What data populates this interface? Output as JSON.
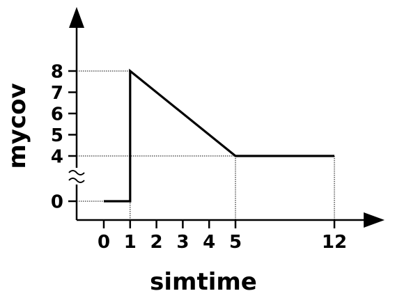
{
  "chart_data": {
    "type": "line",
    "xlabel": "simtime",
    "ylabel": "mycov",
    "x_ticks": [
      "0",
      "1",
      "2",
      "3",
      "4",
      "5",
      "12"
    ],
    "y_ticks": [
      "0",
      "4",
      "5",
      "6",
      "7",
      "8"
    ],
    "y_axis_break": "between 0 and 4",
    "x_axis_break": "between 5 and 12",
    "series": [
      {
        "points": [
          {
            "x": 0,
            "y": 0
          },
          {
            "x": 1,
            "y": 0
          },
          {
            "x": 1,
            "y": 8
          },
          {
            "x": 5,
            "y": 4
          },
          {
            "x": 12,
            "y": 4
          }
        ]
      }
    ],
    "reference_lines": [
      {
        "from": {
          "x": 0,
          "y": 0
        },
        "to": {
          "x": 1,
          "y": 0
        }
      },
      {
        "from": {
          "x": 0,
          "y": 8
        },
        "to": {
          "x": 1,
          "y": 8
        }
      },
      {
        "from": {
          "x": 0,
          "y": 4
        },
        "to": {
          "x": 12,
          "y": 4
        }
      },
      {
        "vertical_at_x": 1
      },
      {
        "vertical_at_x": 5
      },
      {
        "vertical_at_x": 12
      }
    ],
    "grid": false,
    "legend": "none",
    "line_color": "#000000"
  }
}
